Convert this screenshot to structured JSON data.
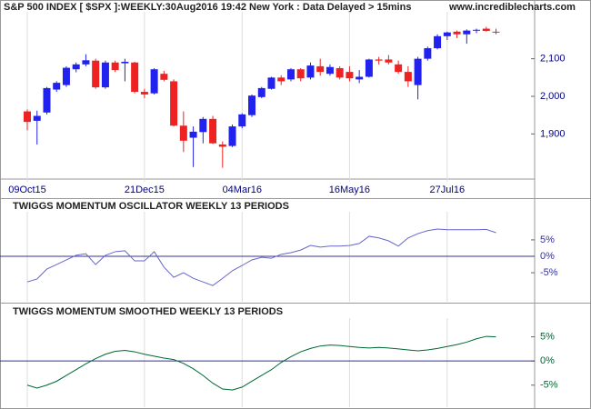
{
  "chart_data": [
    {
      "type": "candlestick",
      "title": "S&P 500 INDEX [ $SPX ]:WEEKLY:30Aug2016 19:42 New York : Data Delayed > 15mins",
      "source": "www.incrediblecharts.com",
      "categories": [
        "09Oct15",
        null,
        null,
        null,
        null,
        null,
        null,
        null,
        null,
        null,
        null,
        null,
        "21Dec15",
        null,
        null,
        null,
        null,
        null,
        null,
        null,
        null,
        null,
        "04Mar16",
        null,
        null,
        null,
        null,
        null,
        null,
        null,
        null,
        null,
        null,
        "16May16",
        null,
        null,
        null,
        null,
        null,
        null,
        null,
        null,
        null,
        "27Jul16",
        null,
        null,
        null,
        null,
        null
      ],
      "open": [
        1960,
        1935,
        1957,
        2018,
        2030,
        2072,
        2085,
        2095,
        2024,
        2090,
        2088,
        2090,
        2012,
        2008,
        2060,
        2040,
        1922,
        1890,
        1905,
        1940,
        1872,
        1868,
        1920,
        1950,
        1998,
        2020,
        2050,
        2045,
        2072,
        2050,
        2080,
        2060,
        2075,
        2065,
        2045,
        2052,
        2098,
        2098,
        2085,
        2065,
        2030,
        2100,
        2128,
        2160,
        2172,
        2165,
        2176,
        2180,
        2172
      ],
      "high": [
        1965,
        1962,
        2025,
        2040,
        2080,
        2090,
        2112,
        2100,
        2095,
        2095,
        2100,
        2092,
        2020,
        2075,
        2068,
        2045,
        1960,
        1920,
        1945,
        1948,
        1880,
        1925,
        1955,
        2005,
        2025,
        2052,
        2056,
        2075,
        2075,
        2090,
        2100,
        2085,
        2080,
        2080,
        2070,
        2100,
        2105,
        2110,
        2095,
        2080,
        2105,
        2132,
        2165,
        2172,
        2175,
        2178,
        2180,
        2185,
        2180
      ],
      "low": [
        1910,
        1872,
        1952,
        2012,
        2025,
        2064,
        2080,
        2020,
        2020,
        2065,
        2040,
        2008,
        1995,
        2005,
        2040,
        1920,
        1852,
        1812,
        1875,
        1873,
        1810,
        1865,
        1915,
        1945,
        1995,
        2018,
        2030,
        2040,
        2040,
        2045,
        2055,
        2055,
        2045,
        2040,
        2035,
        2050,
        2085,
        2085,
        2060,
        2025,
        1992,
        2095,
        2125,
        2150,
        2155,
        2140,
        2168,
        2172,
        2165
      ],
      "close": [
        1932,
        1948,
        2022,
        2036,
        2076,
        2085,
        2096,
        2024,
        2090,
        2070,
        2092,
        2012,
        2005,
        2072,
        2044,
        1922,
        1882,
        1906,
        1940,
        1875,
        1866,
        1920,
        1952,
        2002,
        2022,
        2050,
        2040,
        2072,
        2048,
        2082,
        2065,
        2078,
        2050,
        2048,
        2052,
        2098,
        2095,
        2090,
        2065,
        2040,
        2100,
        2128,
        2160,
        2170,
        2165,
        2175,
        2177,
        2174,
        2170
      ],
      "up_color": "#2222ee",
      "down_color": "#ee2222",
      "ylim": [
        1780,
        2220
      ],
      "yticks": [
        {
          "value": 1900,
          "label": "1,900"
        },
        {
          "value": 2000,
          "label": "2,000"
        },
        {
          "value": 2100,
          "label": "2,100"
        }
      ],
      "grid": true
    },
    {
      "type": "line",
      "title": "TWIGGS MOMENTUM OSCILLATOR WEEKLY 13 PERIODS",
      "values": [
        -7.8,
        -6.9,
        -3.9,
        -2.5,
        -1.1,
        0.3,
        0.8,
        -2.5,
        0.3,
        1.4,
        1.7,
        -1.4,
        -1.4,
        1.4,
        -3.3,
        -6.4,
        -5,
        -6.7,
        -7.8,
        -8.9,
        -6.7,
        -4.4,
        -2.8,
        -1.1,
        -0.3,
        -0.6,
        0.6,
        1.1,
        1.9,
        3.3,
        2.8,
        3.1,
        3.1,
        3.3,
        3.9,
        6.1,
        5.6,
        4.7,
        3.1,
        5.6,
        6.9,
        7.8,
        8.3,
        8.1,
        8.1,
        8.1,
        8.1,
        8.2,
        7.2
      ],
      "color": "#6666cc",
      "tick_color": "#333399",
      "ylim": [
        -13,
        13
      ],
      "yticks": [
        {
          "value": -5,
          "label": "-5%"
        },
        {
          "value": 0,
          "label": "0%"
        },
        {
          "value": 5,
          "label": "5%"
        }
      ]
    },
    {
      "type": "line",
      "title": "TWIGGS MOMENTUM SMOOTHED WEEKLY 13 PERIODS",
      "values": [
        -5,
        -5.6,
        -5,
        -4.2,
        -3,
        -1.8,
        -0.6,
        0.5,
        1.4,
        2,
        2.2,
        1.9,
        1.4,
        1,
        0.6,
        0.3,
        -0.5,
        -1.6,
        -3,
        -4.6,
        -5.8,
        -6,
        -5.4,
        -4.2,
        -3,
        -1.8,
        -0.3,
        0.9,
        1.9,
        2.6,
        3.1,
        3.3,
        3.2,
        3,
        2.8,
        2.7,
        2.8,
        2.7,
        2.5,
        2.3,
        2.1,
        2.3,
        2.6,
        3,
        3.4,
        3.9,
        4.6,
        5.1,
        5
      ],
      "color": "#006633",
      "tick_color": "#006633",
      "ylim": [
        -9,
        8.5
      ],
      "yticks": [
        {
          "value": -5,
          "label": "-5%"
        },
        {
          "value": 0,
          "label": "0%"
        },
        {
          "value": 5,
          "label": "5%"
        }
      ]
    }
  ]
}
